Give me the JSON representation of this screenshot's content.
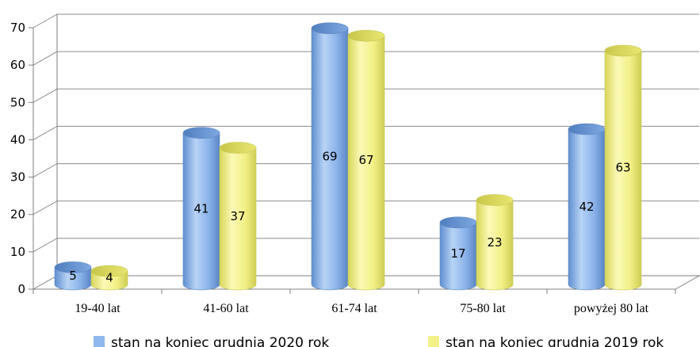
{
  "chart_data": {
    "type": "bar",
    "title": "",
    "xlabel": "",
    "ylabel": "",
    "categories": [
      "19-40 lat",
      "41-60 lat",
      "61-74 lat",
      "75-80 lat",
      "powyżej 80 lat"
    ],
    "series": [
      {
        "name": "stan na koniec grudnia 2020 rok",
        "values": [
          5,
          41,
          69,
          17,
          42
        ],
        "color": "#8fb8ec"
      },
      {
        "name": "stan na koniec grudnia 2019 rok",
        "values": [
          4,
          37,
          67,
          23,
          63
        ],
        "color": "#f3f18a"
      }
    ],
    "ylim": [
      0,
      70
    ],
    "yticks": [
      0,
      10,
      20,
      30,
      40,
      50,
      60,
      70
    ],
    "grid": true,
    "legend_position": "bottom",
    "style": "3d-cylinder"
  }
}
